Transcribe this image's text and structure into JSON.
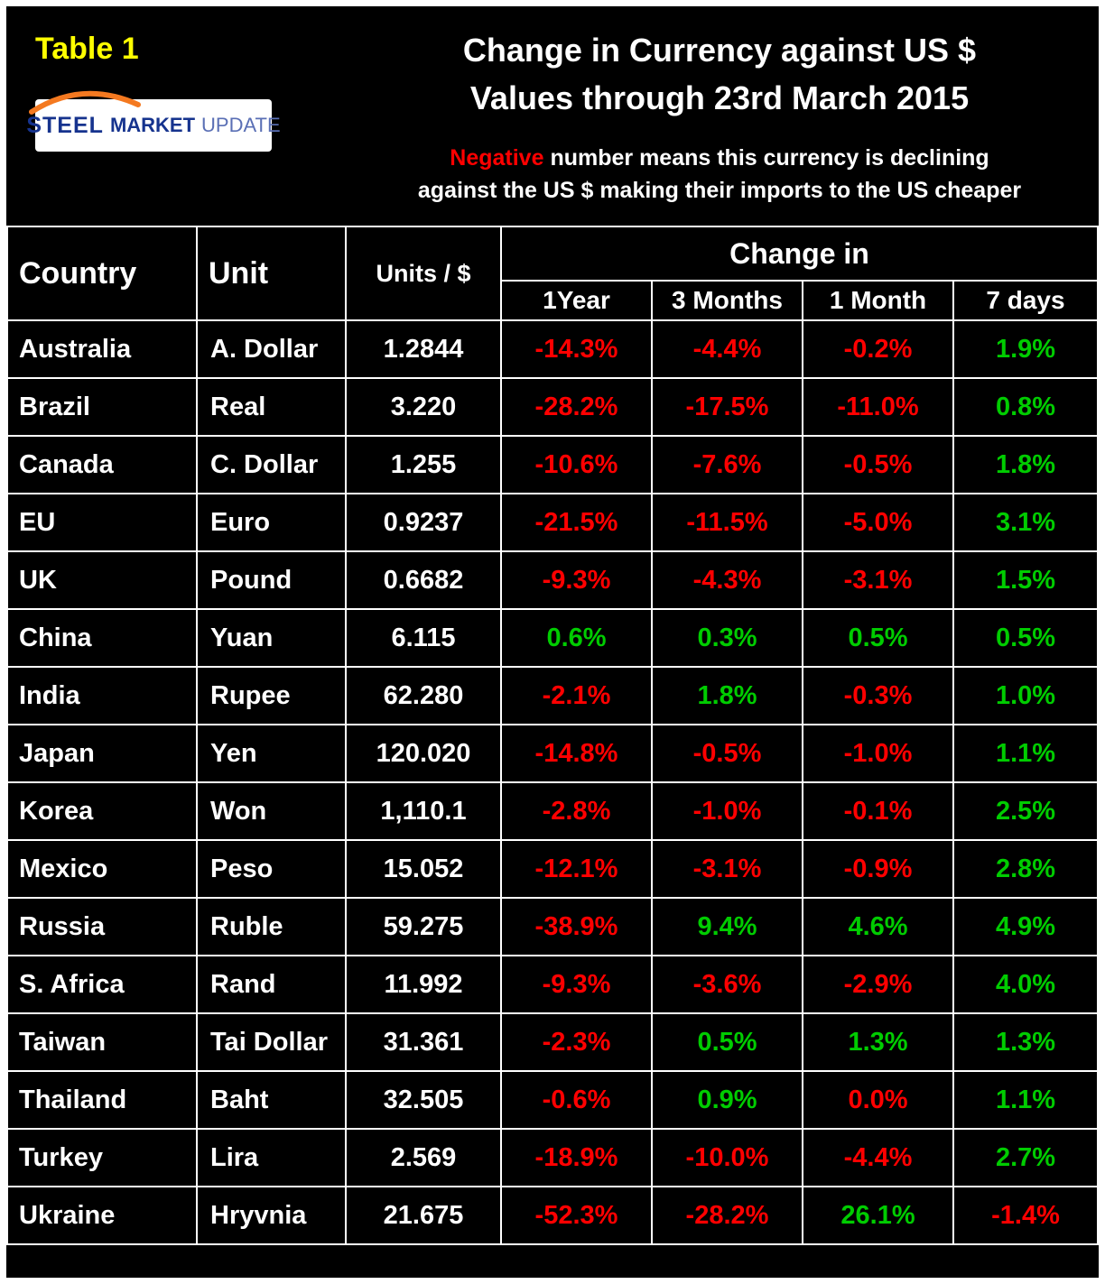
{
  "header": {
    "table_label": "Table 1",
    "title_line1": "Change in Currency against US $",
    "title_line2": "Values through 23rd March 2015",
    "note_negative": "Negative",
    "note_rest": " number means this currency is declining",
    "note_line2": "against the US $ making their imports to the US cheaper",
    "logo": {
      "steel": "STEEL",
      "market": "MARKET",
      "update": "UPDATE",
      "swoosh_icon": "orange-swoosh-icon"
    }
  },
  "colors": {
    "negative": "#ff0000",
    "positive": "#00cc00",
    "table_label_yellow": "#ffff00",
    "logo_blue": "#16338e",
    "logo_orange": "#f47920"
  },
  "chart_data": {
    "type": "table",
    "title": "Change in Currency against US $ Values through 23rd March 2015",
    "columns": {
      "country": "Country",
      "unit": "Unit",
      "units_per_dollar": "Units / $",
      "change_in": "Change in"
    },
    "change_columns": [
      "1Year",
      "3 Months",
      "1 Month",
      "7 days"
    ],
    "rows": [
      {
        "country": "Australia",
        "unit": "A. Dollar",
        "units": "1.2844",
        "changes": [
          {
            "value": "-14.3%",
            "sign": "neg"
          },
          {
            "value": "-4.4%",
            "sign": "neg"
          },
          {
            "value": "-0.2%",
            "sign": "neg"
          },
          {
            "value": "1.9%",
            "sign": "pos"
          }
        ]
      },
      {
        "country": "Brazil",
        "unit": "Real",
        "units": "3.220",
        "changes": [
          {
            "value": "-28.2%",
            "sign": "neg"
          },
          {
            "value": "-17.5%",
            "sign": "neg"
          },
          {
            "value": "-11.0%",
            "sign": "neg"
          },
          {
            "value": "0.8%",
            "sign": "pos"
          }
        ]
      },
      {
        "country": "Canada",
        "unit": "C. Dollar",
        "units": "1.255",
        "changes": [
          {
            "value": "-10.6%",
            "sign": "neg"
          },
          {
            "value": "-7.6%",
            "sign": "neg"
          },
          {
            "value": "-0.5%",
            "sign": "neg"
          },
          {
            "value": "1.8%",
            "sign": "pos"
          }
        ]
      },
      {
        "country": "EU",
        "unit": "Euro",
        "units": "0.9237",
        "changes": [
          {
            "value": "-21.5%",
            "sign": "neg"
          },
          {
            "value": "-11.5%",
            "sign": "neg"
          },
          {
            "value": "-5.0%",
            "sign": "neg"
          },
          {
            "value": "3.1%",
            "sign": "pos"
          }
        ]
      },
      {
        "country": "UK",
        "unit": "Pound",
        "units": "0.6682",
        "changes": [
          {
            "value": "-9.3%",
            "sign": "neg"
          },
          {
            "value": "-4.3%",
            "sign": "neg"
          },
          {
            "value": "-3.1%",
            "sign": "neg"
          },
          {
            "value": "1.5%",
            "sign": "pos"
          }
        ]
      },
      {
        "country": "China",
        "unit": "Yuan",
        "units": "6.115",
        "changes": [
          {
            "value": "0.6%",
            "sign": "pos"
          },
          {
            "value": "0.3%",
            "sign": "pos"
          },
          {
            "value": "0.5%",
            "sign": "pos"
          },
          {
            "value": "0.5%",
            "sign": "pos"
          }
        ]
      },
      {
        "country": "India",
        "unit": "Rupee",
        "units": "62.280",
        "changes": [
          {
            "value": "-2.1%",
            "sign": "neg"
          },
          {
            "value": "1.8%",
            "sign": "pos"
          },
          {
            "value": "-0.3%",
            "sign": "neg"
          },
          {
            "value": "1.0%",
            "sign": "pos"
          }
        ]
      },
      {
        "country": "Japan",
        "unit": "Yen",
        "units": "120.020",
        "changes": [
          {
            "value": "-14.8%",
            "sign": "neg"
          },
          {
            "value": "-0.5%",
            "sign": "neg"
          },
          {
            "value": "-1.0%",
            "sign": "neg"
          },
          {
            "value": "1.1%",
            "sign": "pos"
          }
        ]
      },
      {
        "country": "Korea",
        "unit": "Won",
        "units": "1,110.1",
        "changes": [
          {
            "value": "-2.8%",
            "sign": "neg"
          },
          {
            "value": "-1.0%",
            "sign": "neg"
          },
          {
            "value": "-0.1%",
            "sign": "neg"
          },
          {
            "value": "2.5%",
            "sign": "pos"
          }
        ]
      },
      {
        "country": "Mexico",
        "unit": "Peso",
        "units": "15.052",
        "changes": [
          {
            "value": "-12.1%",
            "sign": "neg"
          },
          {
            "value": "-3.1%",
            "sign": "neg"
          },
          {
            "value": "-0.9%",
            "sign": "neg"
          },
          {
            "value": "2.8%",
            "sign": "pos"
          }
        ]
      },
      {
        "country": "Russia",
        "unit": "Ruble",
        "units": "59.275",
        "changes": [
          {
            "value": "-38.9%",
            "sign": "neg"
          },
          {
            "value": "9.4%",
            "sign": "pos"
          },
          {
            "value": "4.6%",
            "sign": "pos"
          },
          {
            "value": "4.9%",
            "sign": "pos"
          }
        ]
      },
      {
        "country": "S. Africa",
        "unit": "Rand",
        "units": "11.992",
        "changes": [
          {
            "value": "-9.3%",
            "sign": "neg"
          },
          {
            "value": "-3.6%",
            "sign": "neg"
          },
          {
            "value": "-2.9%",
            "sign": "neg"
          },
          {
            "value": "4.0%",
            "sign": "pos"
          }
        ]
      },
      {
        "country": "Taiwan",
        "unit": "Tai Dollar",
        "units": "31.361",
        "changes": [
          {
            "value": "-2.3%",
            "sign": "neg"
          },
          {
            "value": "0.5%",
            "sign": "pos"
          },
          {
            "value": "1.3%",
            "sign": "pos"
          },
          {
            "value": "1.3%",
            "sign": "pos"
          }
        ]
      },
      {
        "country": "Thailand",
        "unit": "Baht",
        "units": "32.505",
        "changes": [
          {
            "value": "-0.6%",
            "sign": "neg"
          },
          {
            "value": "0.9%",
            "sign": "pos"
          },
          {
            "value": "0.0%",
            "sign": "neg"
          },
          {
            "value": "1.1%",
            "sign": "pos"
          }
        ]
      },
      {
        "country": "Turkey",
        "unit": "Lira",
        "units": "2.569",
        "changes": [
          {
            "value": "-18.9%",
            "sign": "neg"
          },
          {
            "value": "-10.0%",
            "sign": "neg"
          },
          {
            "value": "-4.4%",
            "sign": "neg"
          },
          {
            "value": "2.7%",
            "sign": "pos"
          }
        ]
      },
      {
        "country": "Ukraine",
        "unit": "Hryvnia",
        "units": "21.675",
        "changes": [
          {
            "value": "-52.3%",
            "sign": "neg"
          },
          {
            "value": "-28.2%",
            "sign": "neg"
          },
          {
            "value": "26.1%",
            "sign": "pos"
          },
          {
            "value": "-1.4%",
            "sign": "neg"
          }
        ]
      }
    ]
  }
}
